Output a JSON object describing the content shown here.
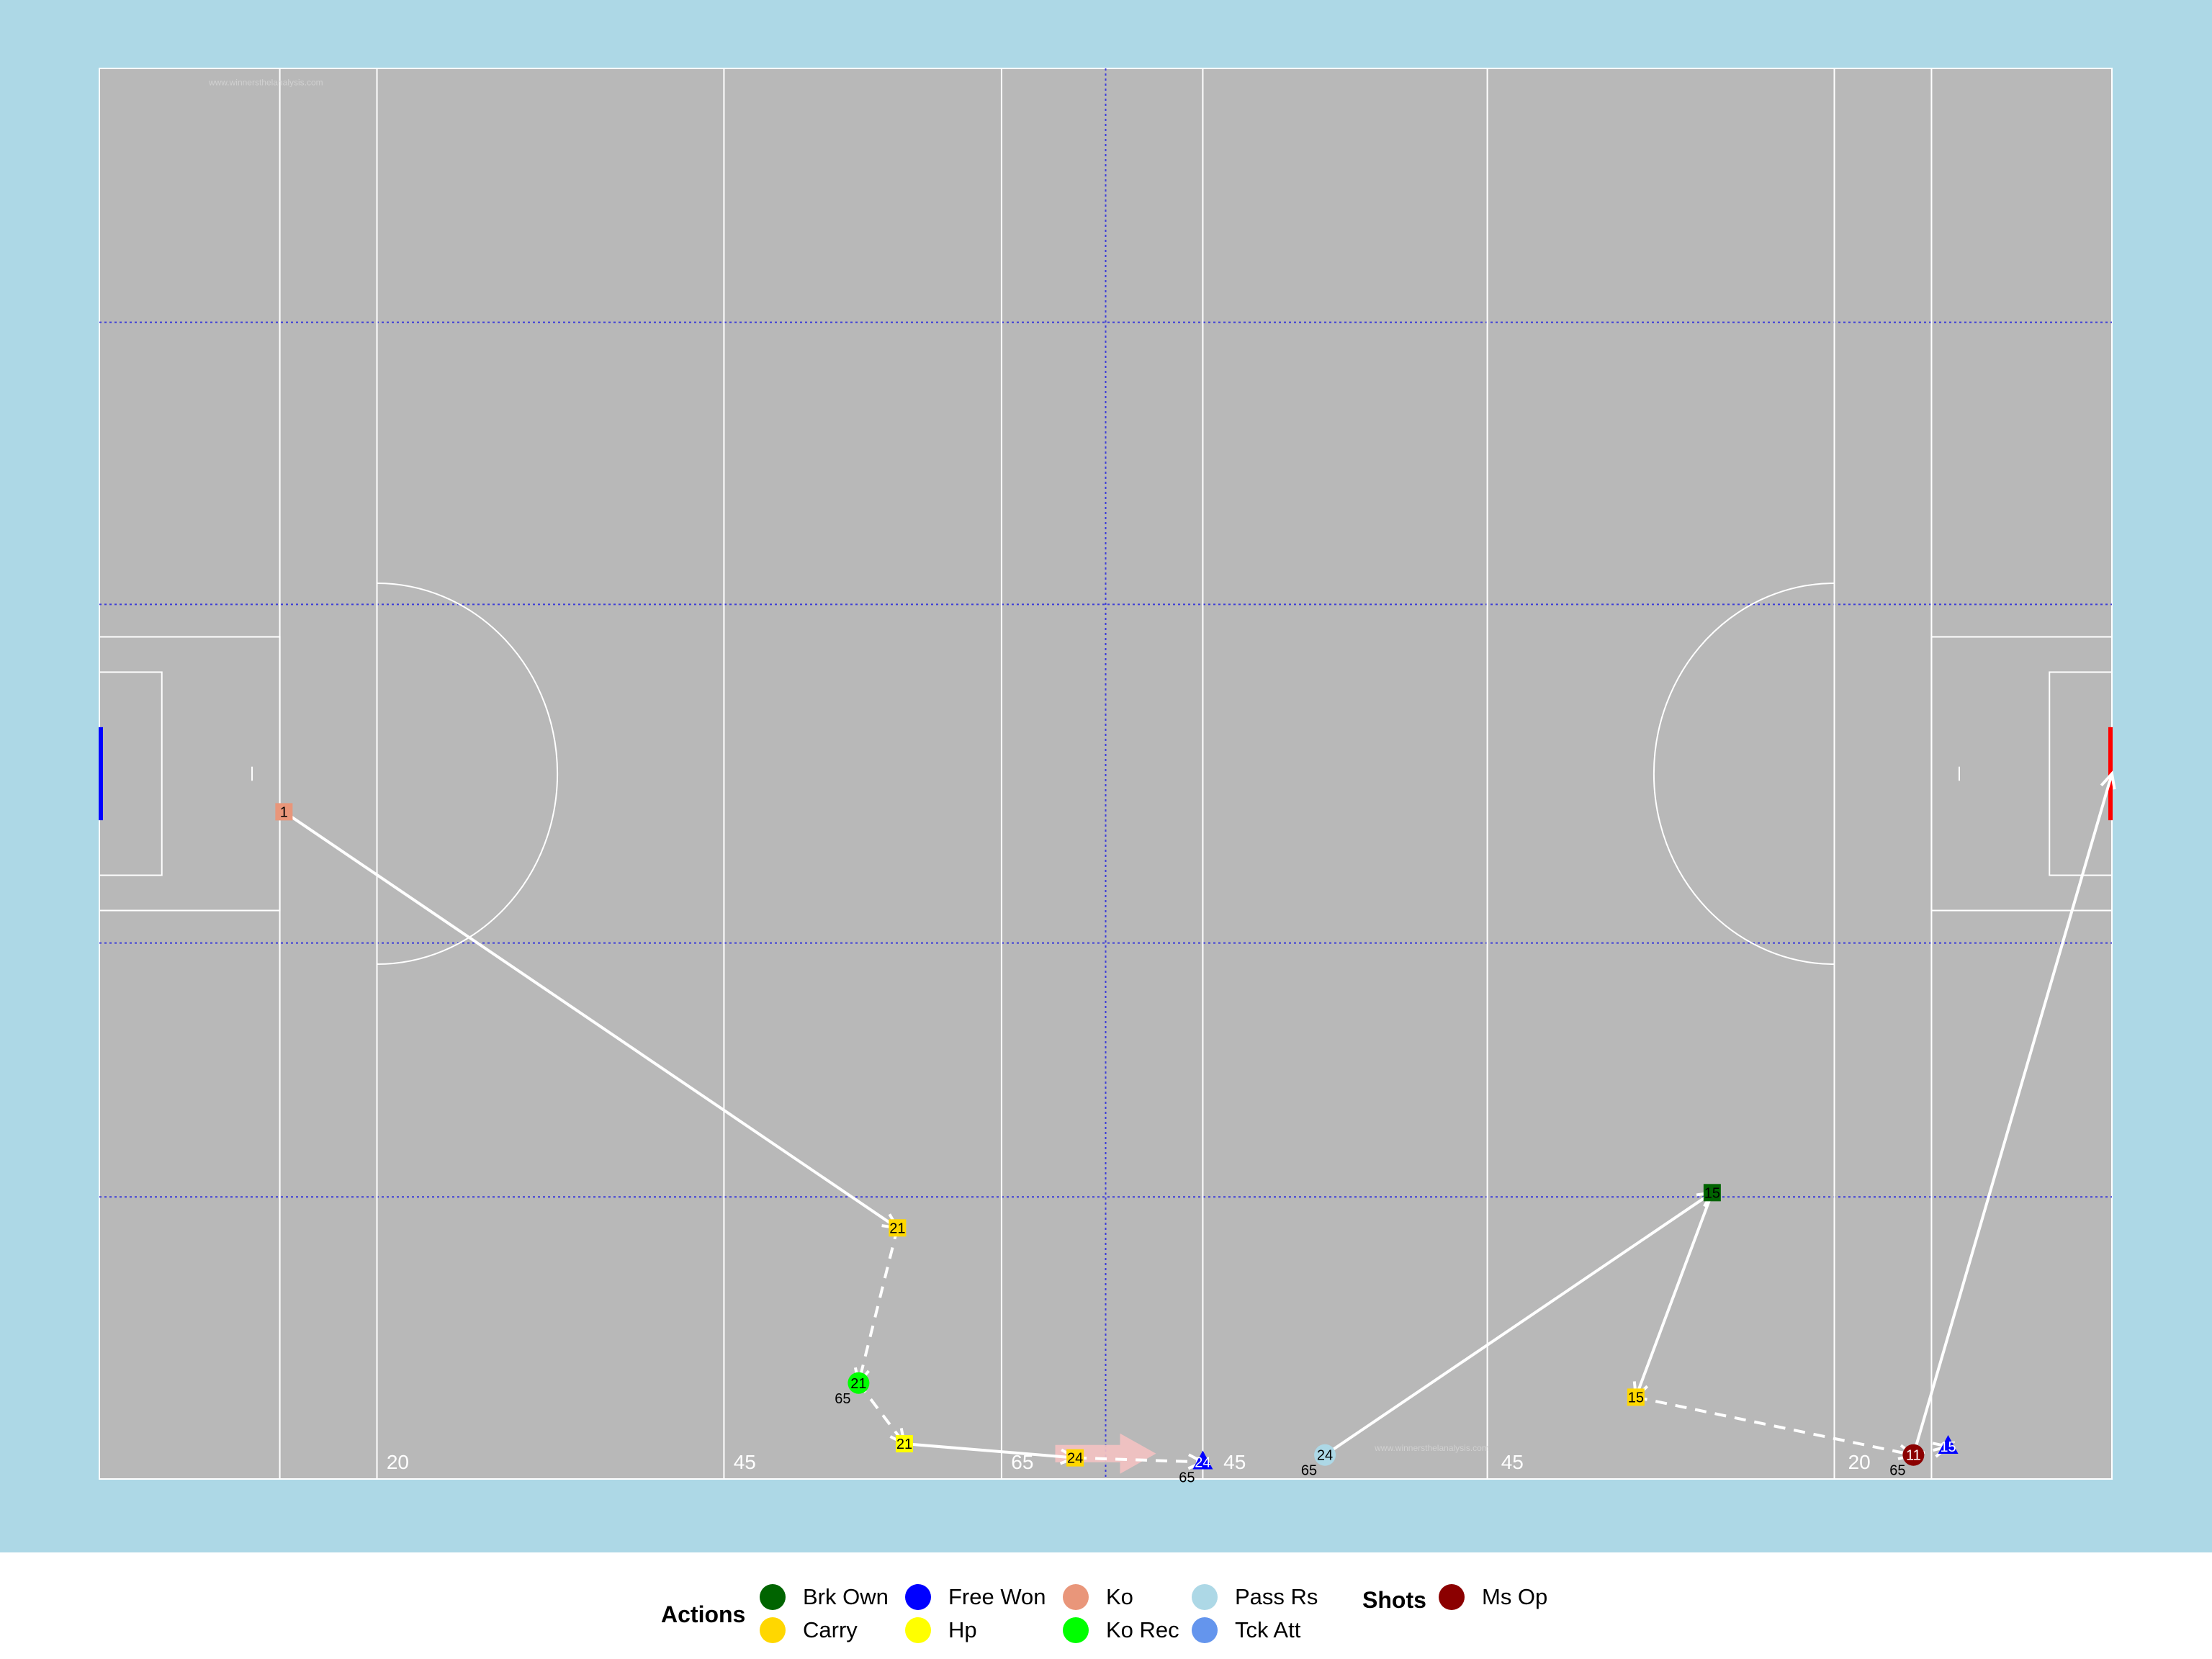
{
  "chart_data": {
    "type": "scatter",
    "title": "",
    "xlabel": "",
    "ylabel": "",
    "xlim": [
      0,
      145
    ],
    "ylim": [
      0,
      100
    ],
    "colors": {
      "panel": "#add8e6",
      "pitch": "#b8b8b8",
      "line": "#ffffff",
      "guide": "#3c3cd8",
      "left_goal": "#0000ff",
      "right_goal": "#ff0000",
      "carry_arrow": "#f4c2c2"
    },
    "distance_labels": [
      {
        "x": 21.5,
        "text": "20"
      },
      {
        "x": 46.5,
        "text": "45"
      },
      {
        "x": 66.5,
        "text": "65"
      },
      {
        "x": 81.8,
        "text": "45"
      },
      {
        "x": 101.8,
        "text": "45"
      },
      {
        "x": 126.8,
        "text": "20"
      }
    ],
    "watermarks": [
      {
        "x": 12,
        "y": 98.8,
        "text": "www.winnersthelanalysis.com"
      },
      {
        "x": 96,
        "y": 2,
        "text": "www.winnersthelanalysis.com"
      }
    ],
    "events": [
      {
        "id": "e1",
        "x": 13.3,
        "y": 47.3,
        "label": "1",
        "action": "Ko",
        "shape": "square"
      },
      {
        "id": "e2",
        "x": 57.5,
        "y": 17.8,
        "label": "21",
        "action": "Carry",
        "shape": "square"
      },
      {
        "id": "e3",
        "x": 54.7,
        "y": 6.8,
        "label": "21",
        "action": "Ko Rec",
        "shape": "circle",
        "sublabel": "65"
      },
      {
        "id": "e4",
        "x": 58.0,
        "y": 2.5,
        "label": "21",
        "action": "Hp",
        "shape": "square"
      },
      {
        "id": "e5",
        "x": 70.3,
        "y": 1.5,
        "label": "24",
        "action": "Carry",
        "shape": "square"
      },
      {
        "id": "e6",
        "x": 79.5,
        "y": 1.2,
        "label": "24",
        "action": "Free Won",
        "shape": "triangle",
        "sublabel": "65"
      },
      {
        "id": "e7",
        "x": 88.3,
        "y": 1.7,
        "label": "24",
        "action": "Pass Rs",
        "shape": "circle",
        "sublabel": "65"
      },
      {
        "id": "e8",
        "x": 116.2,
        "y": 20.3,
        "label": "15",
        "action": "Brk Own",
        "shape": "square"
      },
      {
        "id": "e9",
        "x": 110.7,
        "y": 5.8,
        "label": "15",
        "action": "Carry",
        "shape": "square"
      },
      {
        "id": "e10",
        "x": 130.7,
        "y": 1.7,
        "label": "11",
        "action": "Ms Op",
        "shape": "circle",
        "sublabel": "65"
      },
      {
        "id": "e11",
        "x": 133.2,
        "y": 2.3,
        "label": "15",
        "action": "Free Won",
        "shape": "triangle"
      }
    ],
    "links": [
      {
        "from": "e1",
        "to": "e2",
        "style": "solid"
      },
      {
        "from": "e2",
        "to": "e3",
        "style": "dashed"
      },
      {
        "from": "e3",
        "to": "e4",
        "style": "dashed"
      },
      {
        "from": "e4",
        "to": "e5",
        "style": "solid"
      },
      {
        "from": "e5",
        "to": "e6",
        "style": "dashed"
      },
      {
        "from": "e7",
        "to": "e8",
        "style": "solid"
      },
      {
        "from": "e8",
        "to": "e9",
        "style": "solid"
      },
      {
        "from": "e9",
        "to": "e10",
        "style": "dashed"
      },
      {
        "from": "e10",
        "to": "e11",
        "style": "dashed"
      },
      {
        "from": "e10",
        "to": "goal_right",
        "style": "solid"
      }
    ],
    "goal_right": {
      "x": 145,
      "y": 50
    }
  },
  "legend": {
    "actions_title": "Actions",
    "shots_title": "Shots",
    "actions": [
      {
        "label": "Brk Own",
        "color": "#006400"
      },
      {
        "label": "Carry",
        "color": "#ffd700"
      },
      {
        "label": "Free Won",
        "color": "#0000ff"
      },
      {
        "label": "Hp",
        "color": "#ffff00"
      },
      {
        "label": "Ko",
        "color": "#e9967a"
      },
      {
        "label": "Ko Rec",
        "color": "#00ff00"
      },
      {
        "label": "Pass Rs",
        "color": "#add8e6"
      },
      {
        "label": "Tck Att",
        "color": "#6495ed"
      }
    ],
    "shots": [
      {
        "label": "Ms Op",
        "color": "#8b0000"
      }
    ]
  }
}
